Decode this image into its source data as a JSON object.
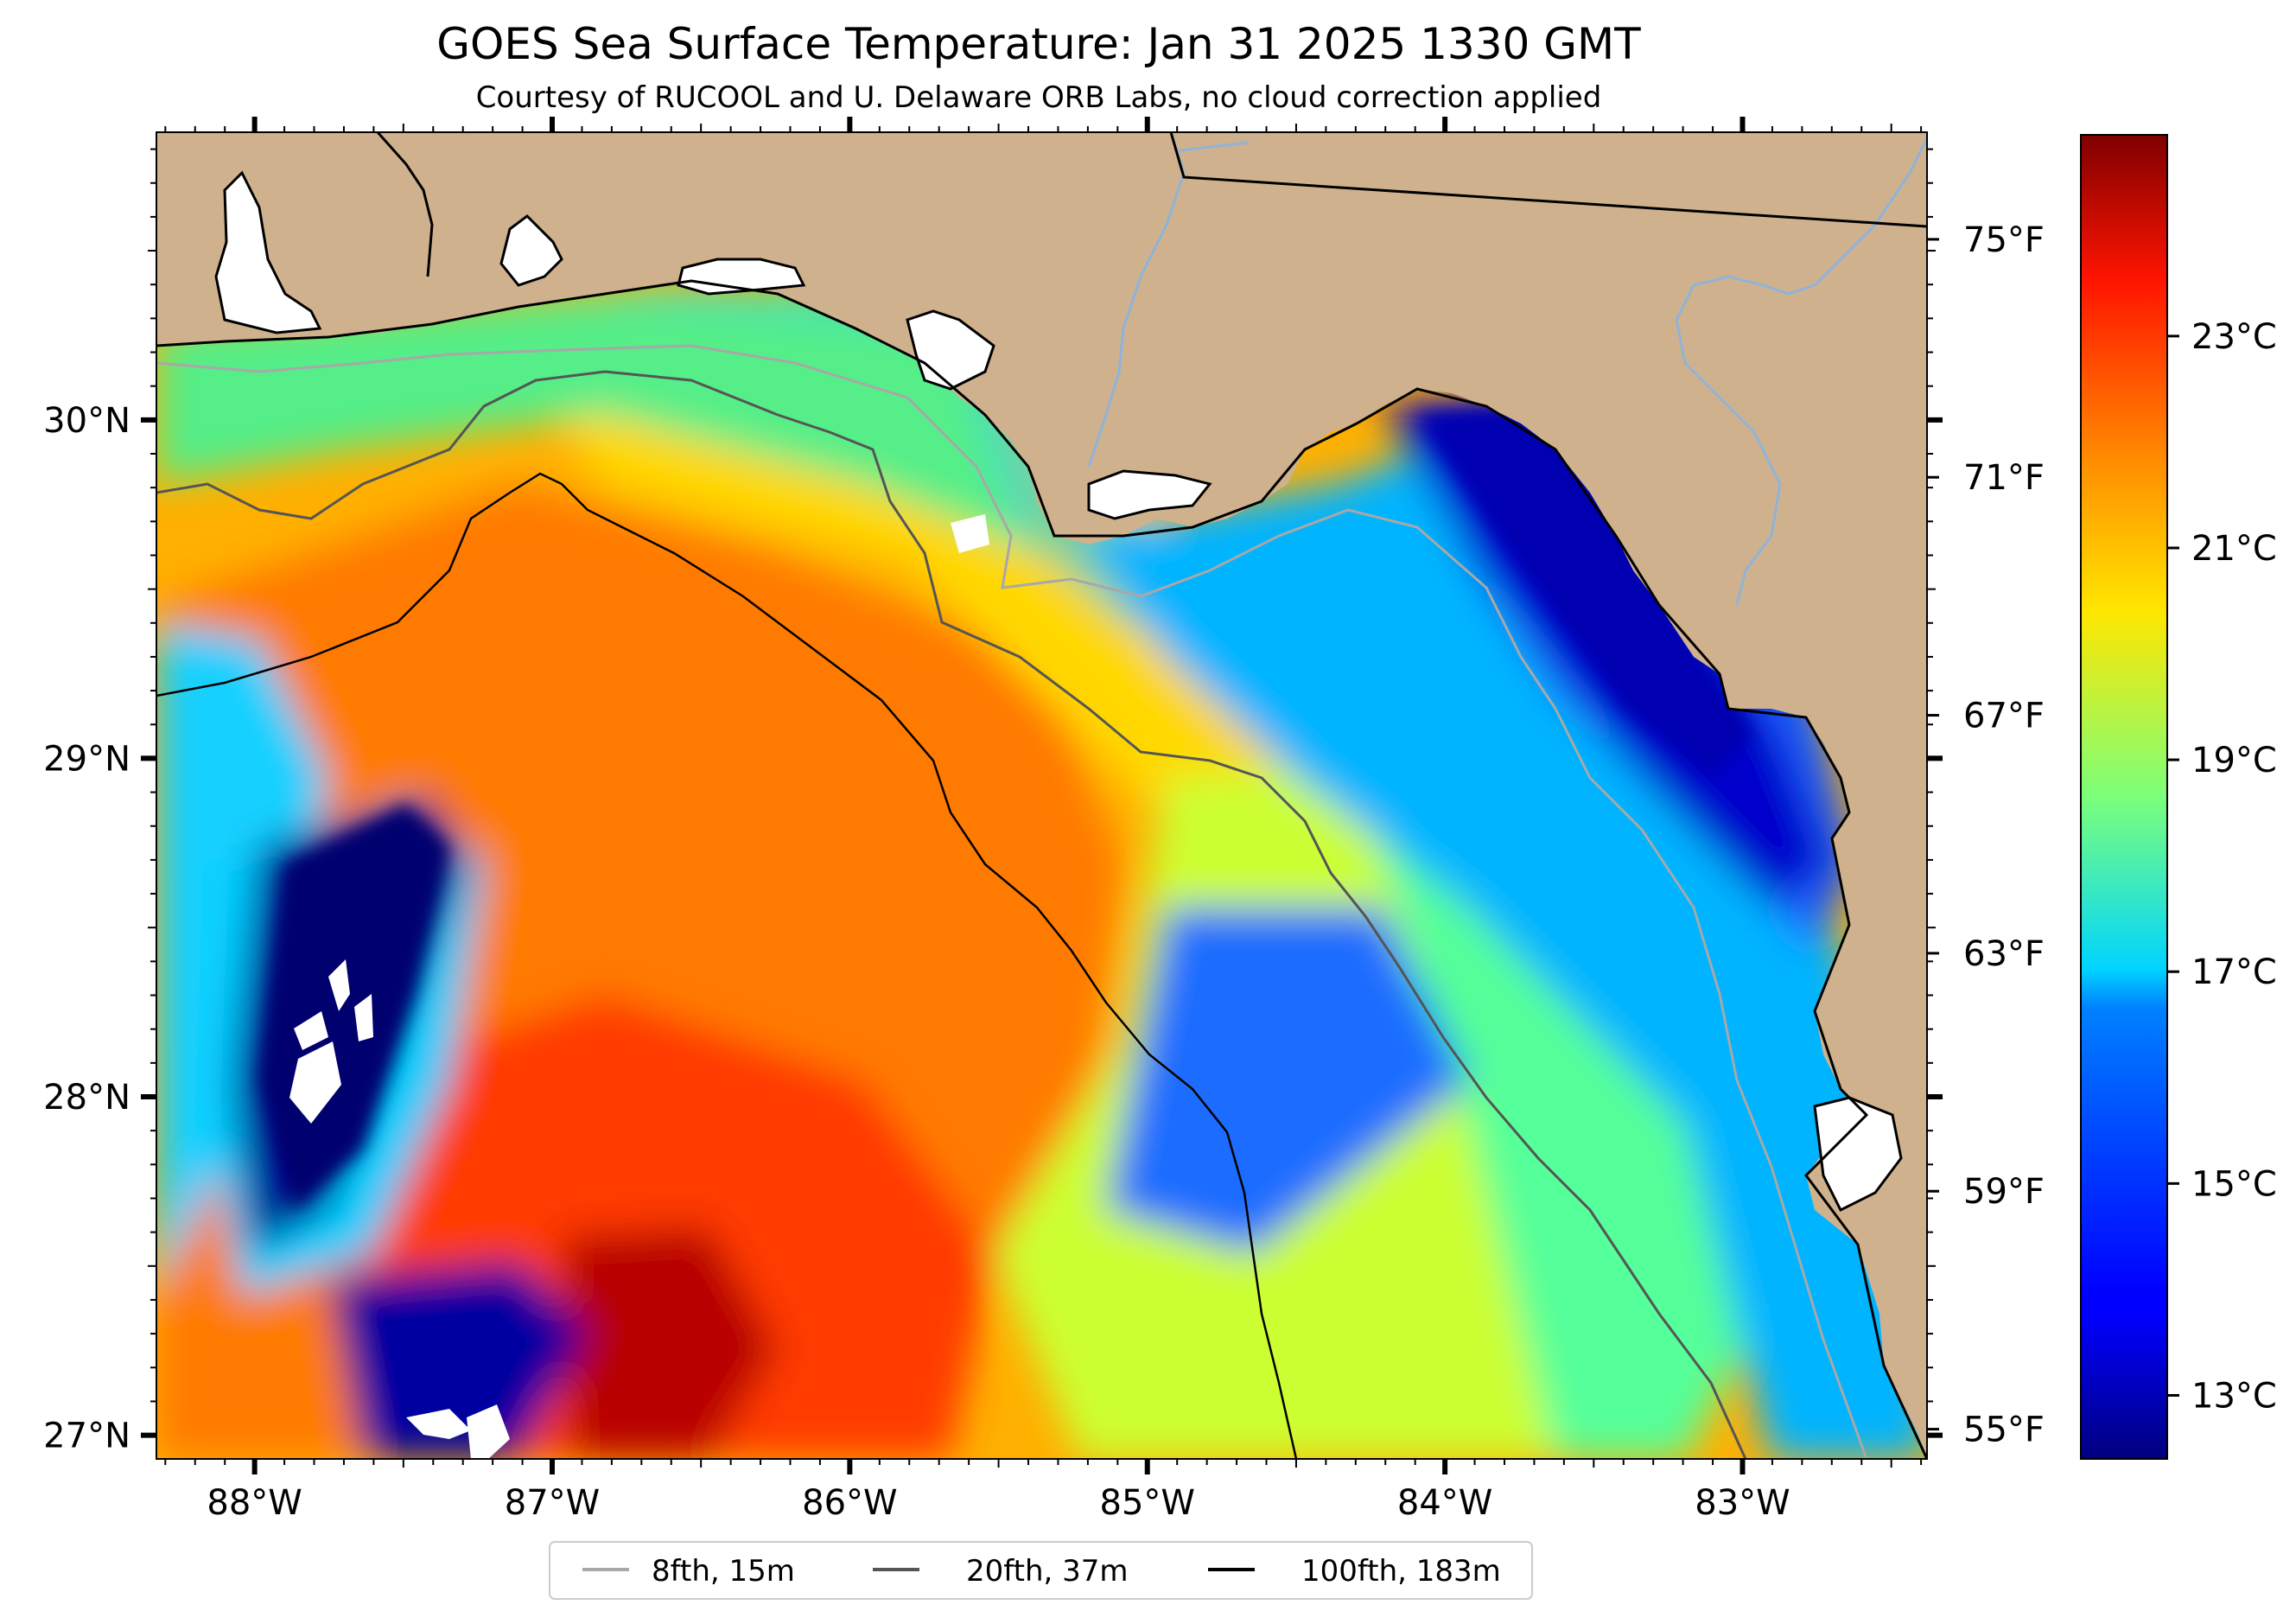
{
  "title": "GOES Sea Surface Temperature: Jan 31 2025 1330 GMT",
  "subtitle": "Courtesy of RUCOOL and U. Delaware ORB Labs, no cloud correction applied",
  "map": {
    "lat_range": [
      26.93,
      30.85
    ],
    "lon_range": [
      -88.33,
      -82.38
    ],
    "lat_ticks": [
      {
        "value": 30,
        "label": "30°N"
      },
      {
        "value": 29,
        "label": "29°N"
      },
      {
        "value": 28,
        "label": "28°N"
      },
      {
        "value": 27,
        "label": "27°N"
      }
    ],
    "lon_ticks": [
      {
        "value": -88,
        "label": "88°W"
      },
      {
        "value": -87,
        "label": "87°W"
      },
      {
        "value": -86,
        "label": "86°W"
      },
      {
        "value": -85,
        "label": "85°W"
      },
      {
        "value": -84,
        "label": "84°W"
      },
      {
        "value": -83,
        "label": "83°W"
      }
    ],
    "right_ticks_f": [
      {
        "value": 75,
        "label": "75°F"
      },
      {
        "value": 71,
        "label": "71°F"
      },
      {
        "value": 67,
        "label": "67°F"
      },
      {
        "value": 63,
        "label": "63°F"
      },
      {
        "value": 59,
        "label": "59°F"
      },
      {
        "value": 55,
        "label": "55°F"
      }
    ],
    "land_color": "#cfb28d",
    "river_color": "#8fb3d9"
  },
  "colorbar": {
    "colormap": "jet",
    "ticks": [
      {
        "value": 23,
        "label": "23°C"
      },
      {
        "value": 21,
        "label": "21°C"
      },
      {
        "value": 19,
        "label": "19°C"
      },
      {
        "value": 17,
        "label": "17°C"
      },
      {
        "value": 15,
        "label": "15°C"
      },
      {
        "value": 13,
        "label": "13°C"
      }
    ]
  },
  "legend": {
    "placement": "bottom-center",
    "items": [
      {
        "label": "8fth, 15m",
        "color": "#a8a8a8"
      },
      {
        "label": "20fth, 37m",
        "color": "#555555"
      },
      {
        "label": "100fth, 183m",
        "color": "#000000"
      }
    ]
  }
}
